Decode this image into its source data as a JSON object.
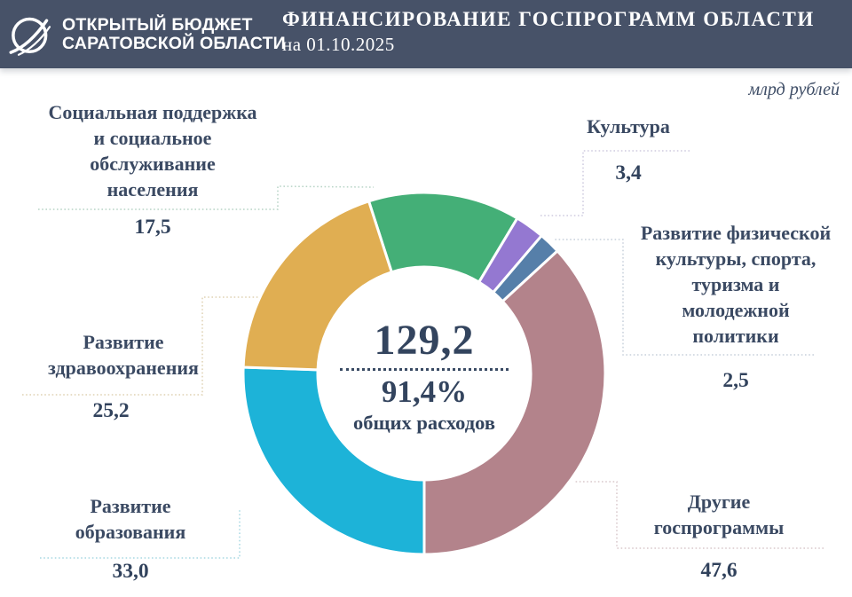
{
  "header": {
    "brand_line1": "ОТКРЫТЫЙ БЮДЖЕТ",
    "brand_line2": "САРАТОВСКОЙ ОБЛАСТИ",
    "title": "ФИНАНСИРОВАНИЕ ГОСПРОГРАММ ОБЛАСТИ",
    "date": "на 01.10.2025"
  },
  "chart_data": {
    "type": "pie",
    "subtype": "donut",
    "title": "ФИНАНСИРОВАНИЕ ГОСПРОГРАММ ОБЛАСТИ",
    "as_of_date": "на 01.10.2025",
    "unit": "млрд рублей",
    "total": 129.2,
    "center_total_label": "129,2",
    "center_percent_label": "91,4%",
    "center_caption": "общих расходов",
    "legend_position": "around",
    "segments": [
      {
        "label": "Социальная поддержка и социальное обслуживание населения",
        "display_lines": [
          "Социальная поддержка",
          "и социальное",
          "обслуживание",
          "населения"
        ],
        "value": 17.5,
        "value_label": "17,5",
        "color": "#44AF77"
      },
      {
        "label": "Культура",
        "display_lines": [
          "Культура"
        ],
        "value": 3.4,
        "value_label": "3,4",
        "color": "#9478D1"
      },
      {
        "label": "Развитие физической культуры, спорта, туризма и молодежной политики",
        "display_lines": [
          "Развитие физической",
          "культуры, спорта,",
          "туризма и",
          "молодежной",
          "политики"
        ],
        "value": 2.5,
        "value_label": "2,5",
        "color": "#567FA9"
      },
      {
        "label": "Другие госпрограммы",
        "display_lines": [
          "Другие",
          "госпрограммы"
        ],
        "value": 47.6,
        "value_label": "47,6",
        "color": "#B3838B"
      },
      {
        "label": "Развитие образования",
        "display_lines": [
          "Развитие",
          "образования"
        ],
        "value": 33.0,
        "value_label": "33,0",
        "color": "#1DB3D8"
      },
      {
        "label": "Развитие здравоохранения",
        "display_lines": [
          "Развитие",
          "здравоохранения"
        ],
        "value": 25.2,
        "value_label": "25,2",
        "color": "#E0AE52"
      }
    ]
  }
}
